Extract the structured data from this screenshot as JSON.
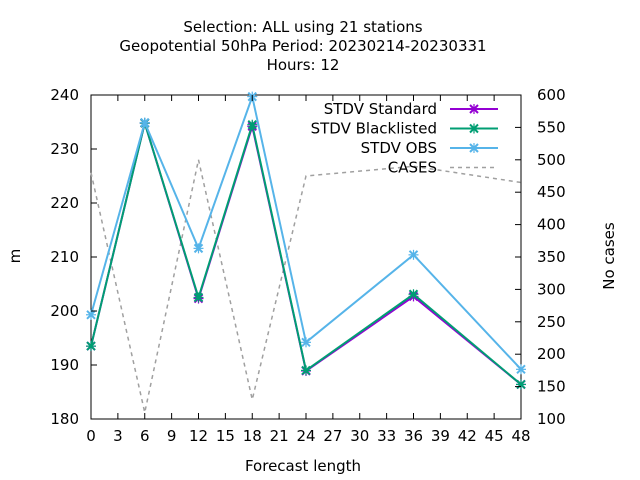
{
  "chart_data": {
    "type": "line",
    "title": [
      "Selection: ALL using    21 stations",
      "Geopotential 50hPa   Period: 20230214-20230331",
      "Hours:  12"
    ],
    "xlabel": "Forecast length",
    "ylabel": "m",
    "y2label": "No cases",
    "xlim": [
      0,
      48
    ],
    "ylim": [
      180,
      240
    ],
    "y2lim": [
      100,
      600
    ],
    "xticks": [
      0,
      3,
      6,
      9,
      12,
      15,
      18,
      21,
      24,
      27,
      30,
      33,
      36,
      39,
      42,
      45,
      48
    ],
    "yticks": [
      180,
      190,
      200,
      210,
      220,
      230,
      240
    ],
    "y2ticks": [
      100,
      150,
      200,
      250,
      300,
      350,
      400,
      450,
      500,
      550,
      600
    ],
    "legend_position": "top-right",
    "x": [
      0,
      6,
      12,
      18,
      24,
      36,
      48
    ],
    "series": [
      {
        "name": "STDV Standard",
        "axis": "y",
        "color": "#9400d3",
        "marker": "x",
        "values": [
          193.5,
          234.8,
          202.3,
          234.2,
          188.9,
          202.7,
          186.4
        ]
      },
      {
        "name": "STDV Blacklisted",
        "axis": "y",
        "color": "#009e73",
        "marker": "x",
        "values": [
          193.5,
          234.8,
          202.5,
          234.5,
          189.0,
          203.1,
          186.4
        ]
      },
      {
        "name": "STDV OBS",
        "axis": "y",
        "color": "#56b4e9",
        "marker": "x",
        "values": [
          199.3,
          234.9,
          211.6,
          239.7,
          194.2,
          210.4,
          189.2
        ]
      },
      {
        "name": "CASES",
        "axis": "y2",
        "color": "#a0a0a0",
        "dashed": true,
        "values": [
          480,
          110,
          500,
          130,
          475,
          490,
          465
        ]
      }
    ]
  }
}
